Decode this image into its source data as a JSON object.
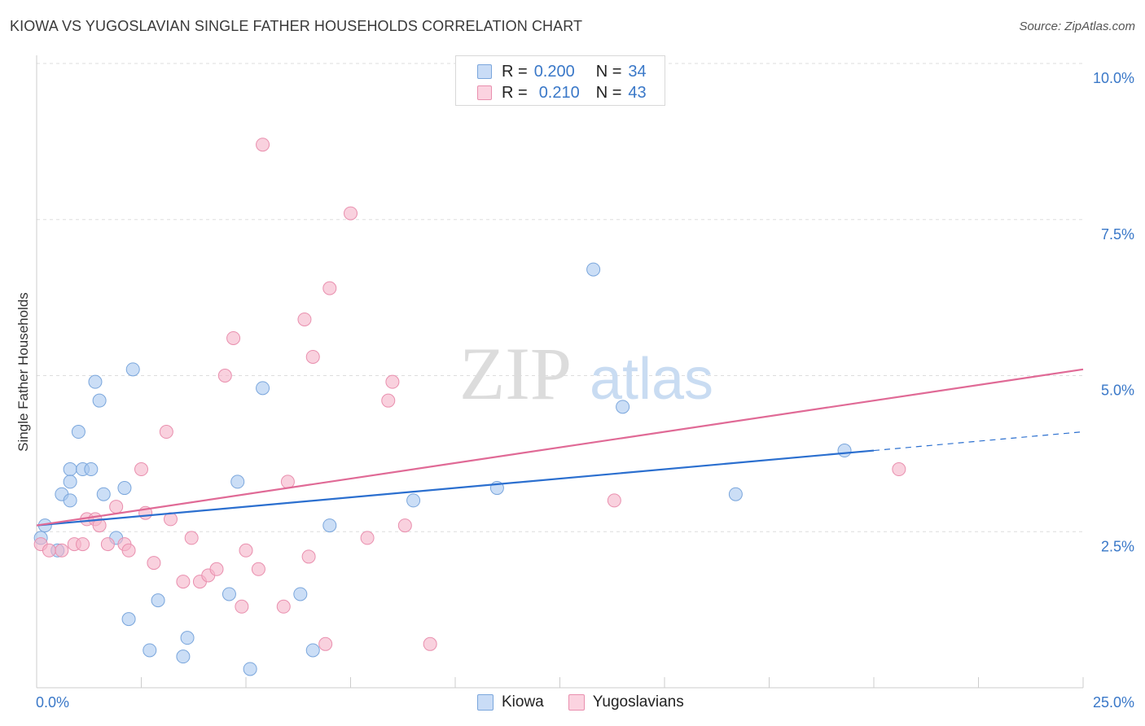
{
  "header": {
    "title": "KIOWA VS YUGOSLAVIAN SINGLE FATHER HOUSEHOLDS CORRELATION CHART",
    "source": "Source: ZipAtlas.com"
  },
  "watermark": {
    "zip": "ZIP",
    "atlas": "atlas"
  },
  "stats_legend": [
    {
      "r_label": "R =",
      "r_value": "0.200",
      "n_label": "N =",
      "n_value": "34",
      "color": "#a8c8f0"
    },
    {
      "r_label": "R =",
      "r_value": "0.210",
      "n_label": "N =",
      "n_value": "43",
      "color": "#f5b3c8"
    }
  ],
  "bottom_legend": [
    {
      "label": "Kiowa",
      "color": "#a8c8f0"
    },
    {
      "label": "Yugoslavians",
      "color": "#f5b3c8"
    }
  ],
  "chart_data": {
    "type": "scatter",
    "title": "KIOWA VS YUGOSLAVIAN SINGLE FATHER HOUSEHOLDS CORRELATION CHART",
    "xlabel": "",
    "ylabel": "Single Father Households",
    "xlim": [
      0,
      25
    ],
    "ylim": [
      0,
      10
    ],
    "x_tick_labels": [
      "0.0%",
      "25.0%"
    ],
    "y_ticks": [
      2.5,
      5.0,
      7.5,
      10.0
    ],
    "y_tick_labels": [
      "2.5%",
      "5.0%",
      "7.5%",
      "10.0%"
    ],
    "grid": true,
    "legend_position": "top-center",
    "series": [
      {
        "name": "Kiowa",
        "color": "#a8c8f0",
        "stroke": "#7aa6dc",
        "line_color": "#2b6fcf",
        "trend": {
          "x0": 0,
          "y0": 2.6,
          "x1": 20,
          "y1": 3.8,
          "dash_x1": 25,
          "dash_y1": 4.1
        },
        "points": [
          [
            0.2,
            2.6
          ],
          [
            0.5,
            2.2
          ],
          [
            0.8,
            3.5
          ],
          [
            0.6,
            3.1
          ],
          [
            0.8,
            3.3
          ],
          [
            0.8,
            3.0
          ],
          [
            1.0,
            4.1
          ],
          [
            1.1,
            3.5
          ],
          [
            1.3,
            3.5
          ],
          [
            1.4,
            4.9
          ],
          [
            1.5,
            4.6
          ],
          [
            1.6,
            3.1
          ],
          [
            1.9,
            2.4
          ],
          [
            2.1,
            3.2
          ],
          [
            2.2,
            1.1
          ],
          [
            2.3,
            5.1
          ],
          [
            2.7,
            0.6
          ],
          [
            2.9,
            1.4
          ],
          [
            3.5,
            0.5
          ],
          [
            3.6,
            0.8
          ],
          [
            4.6,
            1.5
          ],
          [
            4.8,
            3.3
          ],
          [
            5.1,
            0.3
          ],
          [
            5.4,
            4.8
          ],
          [
            6.3,
            1.5
          ],
          [
            6.6,
            0.6
          ],
          [
            7.0,
            2.6
          ],
          [
            9.0,
            3.0
          ],
          [
            11.0,
            3.2
          ],
          [
            13.3,
            6.7
          ],
          [
            14.0,
            4.5
          ],
          [
            16.7,
            3.1
          ],
          [
            19.3,
            3.8
          ],
          [
            0.1,
            2.4
          ]
        ]
      },
      {
        "name": "Yugoslavians",
        "color": "#f5b3c8",
        "stroke": "#e98fae",
        "line_color": "#e06a96",
        "trend": {
          "x0": 0,
          "y0": 2.6,
          "x1": 25,
          "y1": 5.1
        },
        "points": [
          [
            0.1,
            2.3
          ],
          [
            0.3,
            2.2
          ],
          [
            0.6,
            2.2
          ],
          [
            0.9,
            2.3
          ],
          [
            1.1,
            2.3
          ],
          [
            1.2,
            2.7
          ],
          [
            1.4,
            2.7
          ],
          [
            1.5,
            2.6
          ],
          [
            1.7,
            2.3
          ],
          [
            1.9,
            2.9
          ],
          [
            2.1,
            2.3
          ],
          [
            2.2,
            2.2
          ],
          [
            2.5,
            3.5
          ],
          [
            2.6,
            2.8
          ],
          [
            2.8,
            2.0
          ],
          [
            3.1,
            4.1
          ],
          [
            3.2,
            2.7
          ],
          [
            3.5,
            1.7
          ],
          [
            3.7,
            2.4
          ],
          [
            3.9,
            1.7
          ],
          [
            4.1,
            1.8
          ],
          [
            4.3,
            1.9
          ],
          [
            4.5,
            5.0
          ],
          [
            4.7,
            5.6
          ],
          [
            4.9,
            1.3
          ],
          [
            5.0,
            2.2
          ],
          [
            5.3,
            1.9
          ],
          [
            5.4,
            8.7
          ],
          [
            5.9,
            1.3
          ],
          [
            6.0,
            3.3
          ],
          [
            6.4,
            5.9
          ],
          [
            6.5,
            2.1
          ],
          [
            6.6,
            5.3
          ],
          [
            6.9,
            0.7
          ],
          [
            7.0,
            6.4
          ],
          [
            7.5,
            7.6
          ],
          [
            7.9,
            2.4
          ],
          [
            8.4,
            4.6
          ],
          [
            8.5,
            4.9
          ],
          [
            8.8,
            2.6
          ],
          [
            9.4,
            0.7
          ],
          [
            13.8,
            3.0
          ],
          [
            20.6,
            3.5
          ]
        ]
      }
    ]
  }
}
